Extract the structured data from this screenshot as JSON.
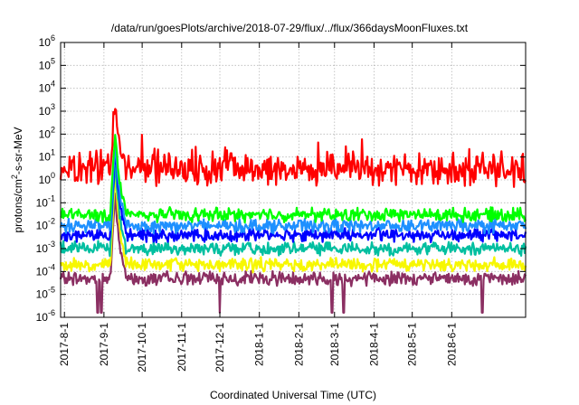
{
  "chart_data": {
    "type": "line",
    "title": "/data/run/goesPlots/archive/2018-07-29/flux/../flux/366daysMoonFluxes.txt",
    "xlabel": "Coordinated Universal Time (UTC)",
    "ylabel": "protons/cm²-s-sr-MeV",
    "yscale": "log",
    "ylim_exponent": [
      -6,
      6
    ],
    "y_ticks": [
      {
        "base": "10",
        "exp": "-6"
      },
      {
        "base": "10",
        "exp": "-5"
      },
      {
        "base": "10",
        "exp": "-4"
      },
      {
        "base": "10",
        "exp": "-3"
      },
      {
        "base": "10",
        "exp": "-2"
      },
      {
        "base": "10",
        "exp": "-1"
      },
      {
        "base": "10",
        "exp": "0"
      },
      {
        "base": "10",
        "exp": "1"
      },
      {
        "base": "10",
        "exp": "2"
      },
      {
        "base": "10",
        "exp": "3"
      },
      {
        "base": "10",
        "exp": "4"
      },
      {
        "base": "10",
        "exp": "5"
      },
      {
        "base": "10",
        "exp": "6"
      }
    ],
    "xlim": [
      "2017-07-29",
      "2018-07-29"
    ],
    "x_ticks": [
      "2017-8-1",
      "2017-9-1",
      "2017-10-1",
      "2017-11-1",
      "2017-12-1",
      "2018-1-1",
      "2018-2-1",
      "2018-3-1",
      "2018-4-1",
      "2018-5-1",
      "2018-6-1"
    ],
    "grid": true,
    "series": [
      {
        "color": "#8b2f62",
        "baseline": 5e-05,
        "event_peak": 0.3,
        "dips": [
          "2017-08-27",
          "2017-08-30",
          "2017-12-01",
          "2018-02-27",
          "2018-03-08",
          "2018-06-25"
        ]
      },
      {
        "color": "#f7f700",
        "baseline": 0.0002,
        "event_peak": 2,
        "dips": []
      },
      {
        "color": "#00bfa0",
        "baseline": 0.001,
        "event_peak": 8,
        "dips": []
      },
      {
        "color": "#0000ff",
        "baseline": 0.004,
        "event_peak": 25,
        "dips": []
      },
      {
        "color": "#1e90ff",
        "baseline": 0.01,
        "event_peak": 60,
        "dips": []
      },
      {
        "color": "#00ff00",
        "baseline": 0.03,
        "event_peak": 200,
        "dips": []
      },
      {
        "color": "#ff0000",
        "baseline": 3,
        "event_peak": 2000,
        "dips": []
      }
    ],
    "event": {
      "start": "2017-09-06",
      "peak": "2017-09-10",
      "end": "2017-09-18"
    }
  }
}
